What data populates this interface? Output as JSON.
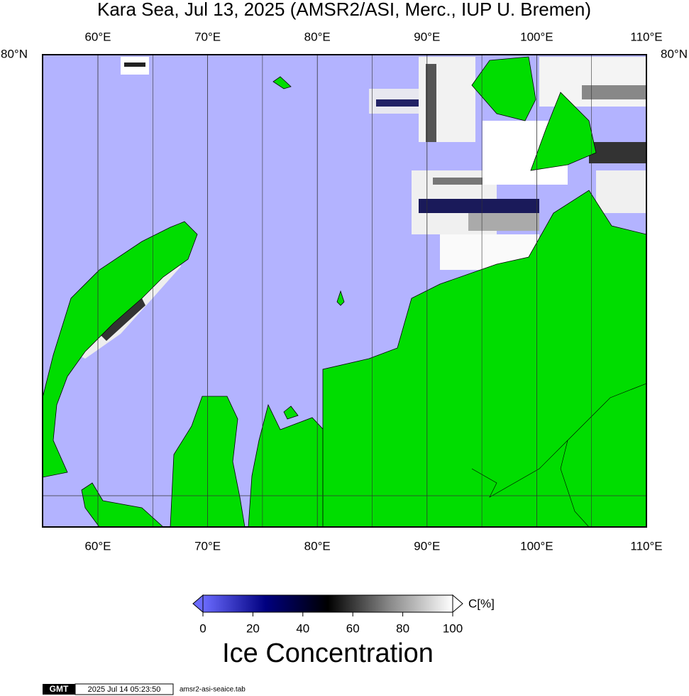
{
  "map": {
    "title": "Kara Sea, Jul 13, 2025 (AMSR2/ASI, Merc., IUP U. Bremen)",
    "lon_labels": [
      "60°E",
      "70°E",
      "80°E",
      "90°E",
      "100°E",
      "110°E"
    ],
    "lat_label": "80°N",
    "colorbar": {
      "ticks": [
        0,
        20,
        40,
        60,
        80,
        100
      ],
      "unit": "C[%]",
      "label": "Ice Concentration"
    },
    "footer": {
      "logo": "GMT",
      "timestamp": "2025 Jul 14 05:23:50",
      "file": "amsr2-asi-seaice.tab"
    }
  }
}
